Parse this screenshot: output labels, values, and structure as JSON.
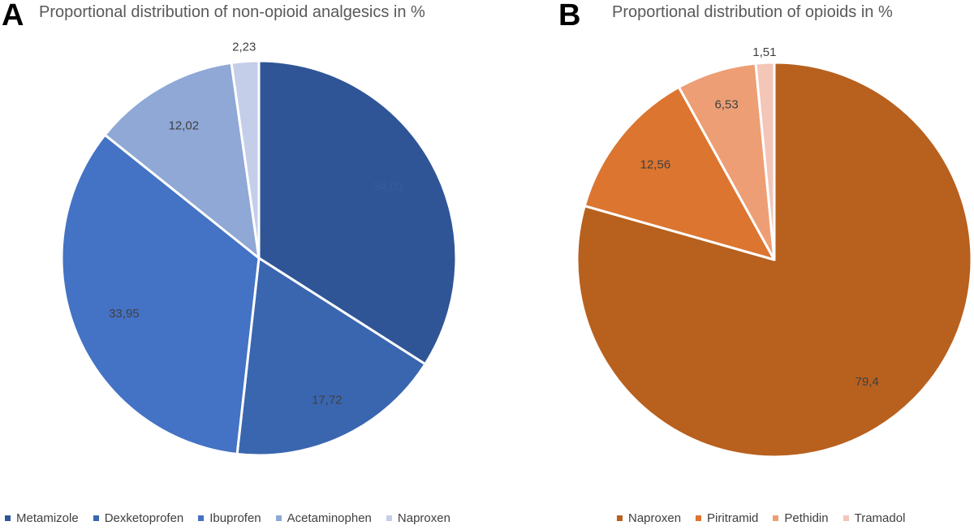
{
  "chart_data": [
    {
      "panel_label": "A",
      "type": "pie",
      "title": "Proportional distribution of non-opioid analgesics in %",
      "categories": [
        "Metamizole",
        "Dexketoprofen",
        "Ibuprofen",
        "Acetaminophen",
        "Naproxen"
      ],
      "values": [
        34.01,
        17.72,
        33.95,
        12.02,
        2.23
      ],
      "data_labels": [
        "34,01",
        "17,72",
        "33,95",
        "12,02",
        "2,23"
      ],
      "colors": [
        "#2f5597",
        "#3a66b0",
        "#4472c4",
        "#8fa8d6",
        "#c5cee8"
      ],
      "label_colors": [
        "#3a5a9a",
        "#404040",
        "#404040",
        "#404040",
        "#404040"
      ],
      "legend": "bottom"
    },
    {
      "panel_label": "B",
      "type": "pie",
      "title": "Proportional distribution of opioids in %",
      "categories": [
        "Naproxen",
        "Piritramid",
        "Pethidin",
        "Tramadol"
      ],
      "values": [
        79.4,
        12.56,
        6.53,
        1.51
      ],
      "data_labels": [
        "79,4",
        "12,56",
        "6,53",
        "1,51"
      ],
      "colors": [
        "#b8601e",
        "#dc7530",
        "#ed9e75",
        "#f3c6b8"
      ],
      "label_colors": [
        "#404040",
        "#404040",
        "#404040",
        "#404040"
      ],
      "legend": "bottom"
    }
  ]
}
